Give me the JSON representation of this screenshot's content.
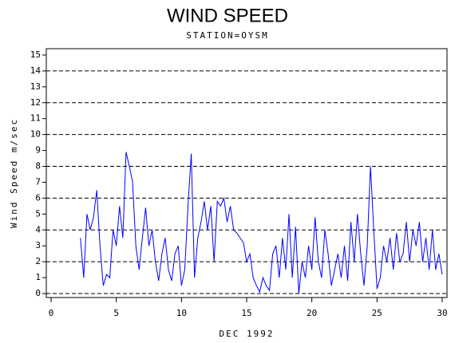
{
  "chart_data": {
    "type": "line",
    "title": "WIND SPEED",
    "subtitle": "STATION=OYSM",
    "x_label": "DEC 1992",
    "y_label": "Wind Speed m/sec",
    "color": "#0000ff",
    "x": [
      2.25,
      2.5,
      2.75,
      3,
      3.25,
      3.5,
      3.75,
      4,
      4.25,
      4.5,
      4.75,
      5,
      5.25,
      5.5,
      5.75,
      6,
      6.25,
      6.5,
      6.75,
      7,
      7.25,
      7.5,
      7.75,
      8,
      8.25,
      8.5,
      8.75,
      9,
      9.25,
      9.5,
      9.75,
      10,
      10.25,
      10.5,
      10.75,
      11,
      11.25,
      11.5,
      11.75,
      12,
      12.25,
      12.5,
      12.75,
      13,
      13.25,
      13.5,
      13.75,
      14,
      14.25,
      14.5,
      14.75,
      15,
      15.25,
      15.5,
      15.75,
      16,
      16.25,
      16.5,
      16.75,
      17,
      17.25,
      17.5,
      17.75,
      18,
      18.25,
      18.5,
      18.75,
      19,
      19.25,
      19.5,
      19.75,
      20,
      20.25,
      20.5,
      20.75,
      21,
      21.25,
      21.5,
      21.75,
      22,
      22.25,
      22.5,
      22.75,
      23,
      23.25,
      23.5,
      23.75,
      24,
      24.25,
      24.5,
      24.75,
      25,
      25.25,
      25.5,
      25.75,
      26,
      26.25,
      26.5,
      26.75,
      27,
      27.25,
      27.5,
      27.75,
      28,
      28.25,
      28.5,
      28.75,
      29,
      29.25,
      29.5,
      29.75,
      30
    ],
    "values": [
      3.5,
      1.0,
      5.0,
      4.0,
      4.8,
      6.5,
      3.0,
      0.5,
      1.2,
      1.0,
      4.0,
      3.0,
      5.5,
      3.5,
      8.9,
      8.0,
      7.0,
      3.0,
      1.5,
      3.5,
      5.4,
      3.0,
      4.0,
      2.0,
      0.8,
      2.5,
      3.5,
      1.5,
      0.8,
      2.5,
      3.0,
      0.5,
      1.5,
      5.5,
      8.8,
      1.0,
      3.5,
      4.5,
      5.8,
      4.0,
      5.5,
      2.0,
      5.8,
      5.5,
      6.0,
      4.5,
      5.5,
      4.0,
      3.8,
      3.5,
      3.2,
      2.0,
      2.5,
      1.0,
      0.5,
      0.1,
      1.0,
      0.5,
      0.2,
      2.5,
      3.0,
      1.0,
      3.5,
      1.5,
      5.0,
      1.0,
      4.2,
      0.0,
      2.0,
      1.0,
      3.0,
      1.5,
      4.8,
      2.0,
      1.0,
      4.0,
      2.5,
      0.5,
      1.5,
      2.5,
      1.0,
      3.0,
      0.8,
      4.5,
      2.0,
      5.0,
      2.5,
      0.5,
      3.0,
      8.0,
      4.0,
      0.3,
      1.0,
      3.0,
      2.0,
      3.5,
      1.5,
      3.8,
      2.0,
      2.5,
      4.5,
      2.0,
      4.0,
      3.0,
      4.5,
      2.0,
      3.5,
      1.5,
      4.0,
      1.5,
      2.5,
      1.2
    ],
    "xlim": [
      -0.37,
      30.37
    ],
    "xticks": [
      0,
      5,
      10,
      15,
      20,
      25,
      30
    ],
    "ylim": [
      -0.25,
      15.4
    ],
    "yticks": [
      0,
      1,
      2,
      3,
      4,
      5,
      6,
      7,
      8,
      9,
      10,
      11,
      12,
      13,
      14,
      15
    ],
    "grid_lines": [
      0,
      2,
      4,
      6,
      8,
      10,
      12,
      14
    ]
  }
}
